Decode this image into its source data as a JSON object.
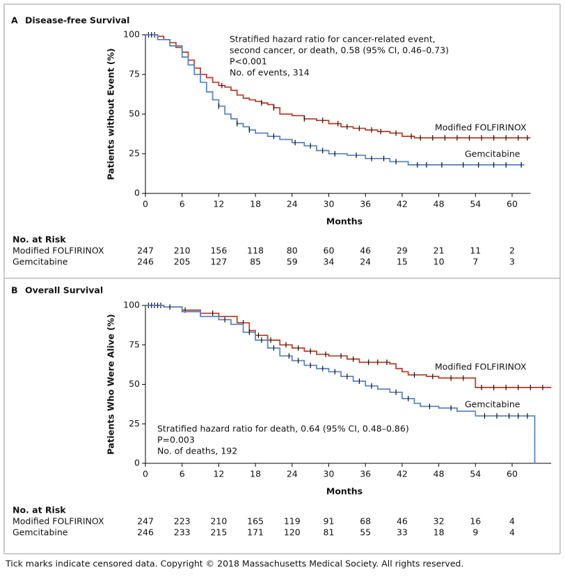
{
  "chart_data": [
    {
      "type": "step",
      "panel": "A",
      "title": "Disease-free Survival",
      "ylabel": "Patients without Event (%)",
      "xlabel": "Months",
      "xlim": [
        0,
        63
      ],
      "ylim": [
        0,
        100
      ],
      "xticks": [
        0,
        6,
        12,
        18,
        24,
        30,
        36,
        42,
        48,
        54,
        60
      ],
      "yticks": [
        0,
        25,
        50,
        75,
        100
      ],
      "annotation": [
        "Stratified hazard ratio for cancer-related event,",
        "second cancer, or death, 0.58 (95% CI, 0.46–0.73)",
        "P<0.001",
        "No. of events, 314"
      ],
      "series": [
        {
          "name": "Modified FOLFIRINOX",
          "color": "#b8422c",
          "x": [
            0,
            1,
            2,
            3,
            4,
            5,
            6,
            7,
            8,
            9,
            10,
            11,
            12,
            13,
            14,
            15,
            16,
            17,
            18,
            19,
            20,
            21,
            22,
            24,
            26,
            28,
            30,
            32,
            34,
            36,
            38,
            40,
            42,
            44,
            63
          ],
          "values": [
            100,
            100,
            99,
            97,
            95,
            92,
            89,
            84,
            79,
            75,
            73,
            70,
            68,
            67,
            65,
            62,
            60,
            59,
            58,
            57,
            56,
            54,
            50,
            49,
            47,
            46,
            44,
            42,
            41,
            40,
            39,
            38,
            36,
            35,
            35
          ],
          "censored": [
            0.5,
            1.5,
            12.5,
            19,
            21,
            26,
            29,
            31.5,
            33,
            35,
            37,
            38.5,
            41,
            43.5,
            45,
            47,
            49,
            51,
            53,
            55,
            57,
            59,
            61,
            62.5
          ]
        },
        {
          "name": "Gemcitabine",
          "color": "#5a86c4",
          "x": [
            0,
            2,
            4,
            6,
            7,
            8,
            9,
            10,
            11,
            12,
            13,
            14,
            15,
            16,
            17,
            18,
            20,
            22,
            24,
            26,
            28,
            30,
            33,
            36,
            40,
            43,
            62
          ],
          "values": [
            100,
            97,
            93,
            86,
            81,
            75,
            70,
            64,
            59,
            55,
            50,
            47,
            44,
            42,
            40,
            38,
            36,
            34,
            32,
            30,
            27,
            25,
            24,
            22,
            20,
            18,
            18
          ],
          "censored": [
            1,
            12,
            15,
            17,
            21,
            24.5,
            27,
            29,
            31,
            34.5,
            37,
            39,
            41,
            44.5,
            46,
            48.5,
            52,
            54.5,
            57,
            59,
            61.5
          ]
        }
      ],
      "risk_table": {
        "title": "No. at Risk",
        "rows": [
          [
            247,
            210,
            156,
            118,
            80,
            60,
            46,
            29,
            21,
            11,
            2
          ],
          [
            246,
            205,
            127,
            85,
            59,
            34,
            24,
            15,
            10,
            7,
            3
          ]
        ]
      }
    },
    {
      "type": "step",
      "panel": "B",
      "title": "Overall Survival",
      "ylabel": "Patients Who Were Alive (%)",
      "xlabel": "Months",
      "xlim": [
        0,
        66.4
      ],
      "ylim": [
        0,
        100
      ],
      "xticks": [
        0,
        6,
        12,
        18,
        24,
        30,
        36,
        42,
        48,
        54,
        60
      ],
      "yticks": [
        0,
        25,
        50,
        75,
        100
      ],
      "annotation": [
        "Stratified hazard ratio for death, 0.64 (95% CI, 0.48–0.86)",
        "P=0.003",
        "No. of deaths, 192"
      ],
      "series": [
        {
          "name": "Modified FOLFIRINOX",
          "color": "#b8422c",
          "x": [
            0,
            3,
            6,
            9,
            12,
            15,
            17,
            18,
            20,
            22,
            24,
            26,
            28,
            30,
            33,
            35,
            40,
            41,
            42,
            43,
            46,
            48,
            54,
            66.4
          ],
          "values": [
            100,
            99,
            97,
            95,
            93,
            89,
            84,
            81,
            78,
            75,
            73,
            71,
            69,
            68,
            66,
            64,
            63,
            60,
            58,
            56,
            55,
            54,
            48,
            48
          ],
          "censored": [
            0.5,
            1.5,
            2.5,
            6.5,
            11,
            16,
            18.5,
            20.5,
            23,
            25,
            27,
            29.5,
            32,
            34,
            36.5,
            38,
            39.5,
            44,
            47,
            50,
            52,
            55,
            57,
            59,
            61,
            63,
            65
          ]
        },
        {
          "name": "Gemcitabine",
          "color": "#5a86c4",
          "x": [
            0,
            3,
            6,
            9,
            12,
            14,
            16,
            18,
            20,
            22,
            24,
            26,
            28,
            30,
            32,
            34,
            36,
            38,
            40,
            42,
            44,
            45,
            48,
            51,
            54,
            63.7
          ],
          "values": [
            100,
            99,
            96,
            93,
            91,
            88,
            83,
            78,
            73,
            68,
            65,
            62,
            60,
            58,
            55,
            52,
            49,
            47,
            45,
            41,
            38,
            36,
            35,
            33,
            30,
            0
          ],
          "censored": [
            1,
            2,
            4,
            13,
            17,
            19,
            21,
            23.5,
            25,
            27,
            29,
            31,
            33,
            35,
            37,
            41,
            43,
            46.5,
            50,
            55.5,
            57.5,
            59.5,
            61,
            62.5
          ]
        }
      ],
      "risk_table": {
        "title": "No. at Risk",
        "rows": [
          [
            247,
            223,
            210,
            165,
            119,
            91,
            68,
            46,
            32,
            16,
            4
          ],
          [
            246,
            233,
            215,
            171,
            120,
            81,
            55,
            33,
            18,
            9,
            4
          ]
        ]
      }
    }
  ],
  "footer": "Tick marks indicate censored data. Copyright © 2018 Massachusetts Medical Society. All rights reserved."
}
